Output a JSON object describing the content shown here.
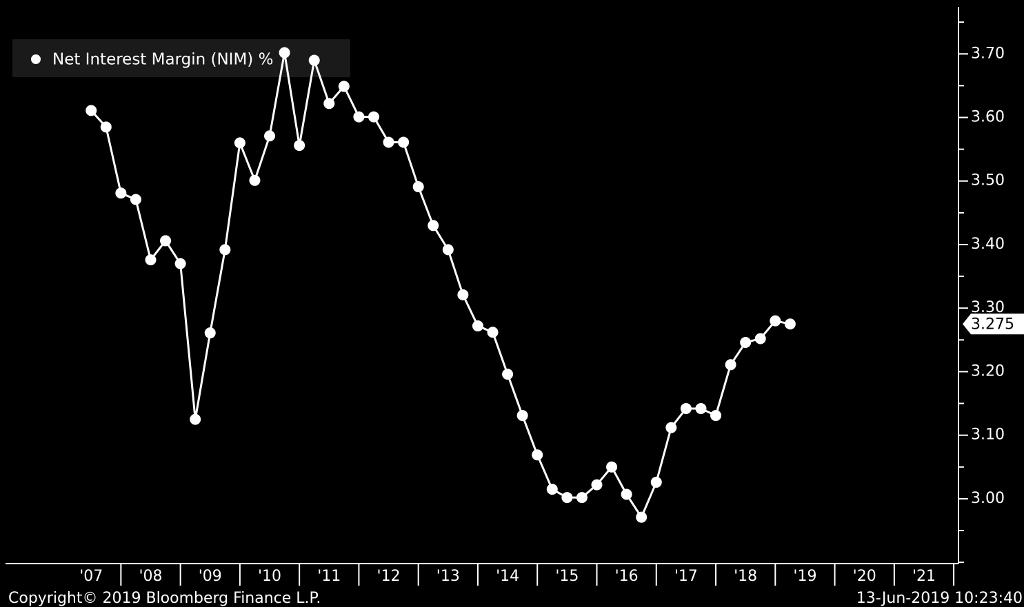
{
  "chart_data": {
    "type": "line",
    "legend": {
      "position": "upper left"
    },
    "x": [
      2007.5,
      2007.75,
      2008,
      2008.25,
      2008.5,
      2008.75,
      2009,
      2009.25,
      2009.5,
      2009.75,
      2010,
      2010.25,
      2010.5,
      2010.75,
      2011,
      2011.25,
      2011.5,
      2011.75,
      2012,
      2012.25,
      2012.5,
      2012.75,
      2013,
      2013.25,
      2013.5,
      2013.75,
      2014,
      2014.25,
      2014.5,
      2014.75,
      2015,
      2015.25,
      2015.5,
      2015.75,
      2016,
      2016.25,
      2016.5,
      2016.75,
      2017,
      2017.25,
      2017.5,
      2017.75,
      2018,
      2018.25,
      2018.5,
      2018.75,
      2019,
      2019.25
    ],
    "series": [
      {
        "name": "Net Interest Margin (NIM) %",
        "color": "#ffffff",
        "values": [
          3.611,
          3.585,
          3.481,
          3.471,
          3.376,
          3.406,
          3.37,
          3.125,
          3.261,
          3.392,
          3.56,
          3.501,
          3.571,
          3.702,
          3.556,
          3.69,
          3.622,
          3.649,
          3.601,
          3.601,
          3.561,
          3.561,
          3.491,
          3.43,
          3.392,
          3.321,
          3.272,
          3.262,
          3.196,
          3.131,
          3.069,
          3.015,
          3.002,
          3.002,
          3.022,
          3.05,
          3.007,
          2.971,
          3.026,
          3.112,
          3.142,
          3.142,
          3.131,
          3.211,
          3.246,
          3.252,
          3.28,
          3.275
        ],
        "value_labels": [
          null,
          null,
          null,
          null,
          null,
          null,
          null,
          null,
          null,
          null,
          null,
          null,
          null,
          null,
          null,
          null,
          null,
          null,
          null,
          null,
          null,
          null,
          null,
          null,
          null,
          null,
          null,
          null,
          null,
          null,
          null,
          null,
          null,
          null,
          null,
          null,
          null,
          null,
          null,
          null,
          null,
          null,
          null,
          null,
          null,
          null,
          null,
          "3.275"
        ]
      }
    ],
    "xlim": [
      2006.06,
      2022.08
    ],
    "xticks": [
      2008,
      2009,
      2010,
      2011,
      2012,
      2013,
      2014,
      2015,
      2016,
      2017,
      2018,
      2019,
      2020,
      2021,
      2022
    ],
    "xlabels": [
      {
        "value": 2007.5,
        "label": "'07"
      },
      {
        "value": 2008.5,
        "label": "'08"
      },
      {
        "value": 2009.5,
        "label": "'09"
      },
      {
        "value": 2010.5,
        "label": "'10"
      },
      {
        "value": 2011.5,
        "label": "'11"
      },
      {
        "value": 2012.5,
        "label": "'12"
      },
      {
        "value": 2013.5,
        "label": "'13"
      },
      {
        "value": 2014.5,
        "label": "'14"
      },
      {
        "value": 2015.5,
        "label": "'15"
      },
      {
        "value": 2016.5,
        "label": "'16"
      },
      {
        "value": 2017.5,
        "label": "'17"
      },
      {
        "value": 2018.5,
        "label": "'18"
      },
      {
        "value": 2019.5,
        "label": "'19"
      },
      {
        "value": 2020.5,
        "label": "'20"
      },
      {
        "value": 2021.5,
        "label": "'21"
      }
    ],
    "ylim": [
      2.898,
      3.774
    ],
    "yticks": [
      {
        "value": 3,
        "label": "3.00"
      },
      {
        "value": 3.1,
        "label": "3.10"
      },
      {
        "value": 3.2,
        "label": "3.20"
      },
      {
        "value": 3.3,
        "label": "3.30"
      },
      {
        "value": 3.4,
        "label": "3.40"
      },
      {
        "value": 3.5,
        "label": "3.50"
      },
      {
        "value": 3.6,
        "label": "3.60"
      },
      {
        "value": 3.7,
        "label": "3.70"
      }
    ],
    "yminor_ticks": [
      2.9,
      2.95,
      3.05,
      3.15,
      3.25,
      3.35,
      3.45,
      3.55,
      3.65,
      3.75
    ],
    "footer_left": "Copyright© 2019 Bloomberg Finance L.P.",
    "footer_right": "13-Jun-2019 10:23:40"
  }
}
